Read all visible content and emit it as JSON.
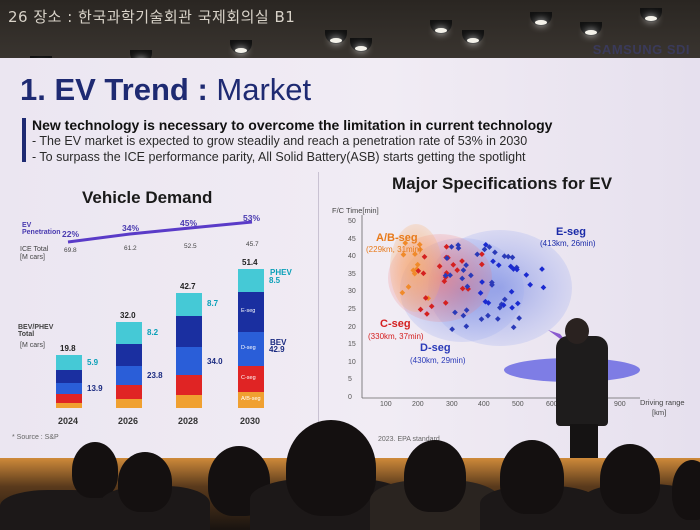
{
  "ceiling": {
    "room_text": "26    장소 : 한국과학기술회관 국제회의실 B1"
  },
  "slide": {
    "brand": "SAMSUNG SDI",
    "title_bold": "1. EV Trend : ",
    "title_thin": "Market",
    "main_bullet": "New technology is necessary to overcome the limitation in current technology",
    "sub_bullets": [
      "- The EV market is expected to grow steadily and reach a penetration rate of 53% in 2030",
      "- To surpass the ICE performance parity, All Solid Battery(ASB) starts getting the spotlight"
    ],
    "left_title": "Vehicle Demand",
    "right_title": "Major Specifications for EV",
    "source": "* Source : S&P",
    "footnote": "2023.              EPA standard"
  },
  "vehicle_demand": {
    "ev_penetration_label": "EV Penetration",
    "ice_total_label": "ICE Total",
    "ice_unit": "[M cars]",
    "bev_label": "BEV/PHEV Total",
    "bev_unit": "[M cars]",
    "years": [
      "2024",
      "2026",
      "2028",
      "2030"
    ],
    "penetration": [
      "22%",
      "34%",
      "45%",
      "53%"
    ],
    "ice_totals": [
      "69.8",
      "61.2",
      "52.5",
      "45.7"
    ],
    "totals": [
      "19.8",
      "32.0",
      "42.7",
      "51.4"
    ],
    "phev": [
      "5.9",
      "8.2",
      "8.7",
      "8.5"
    ],
    "bev": [
      "13.9",
      "23.8",
      "34.0",
      "42.9"
    ],
    "phev_label": "PHEV",
    "bev_side_label": "BEV",
    "seg_labels": [
      "E-seg",
      "D-seg",
      "C-seg",
      "A/B-seg"
    ],
    "colors": {
      "phev": "#45c9d6",
      "e_seg": "#1a2fa0",
      "d_seg": "#2a5ed8",
      "c_seg": "#e02424",
      "ab_seg": "#f0a030"
    }
  },
  "specs_chart": {
    "y_axis_label": "F/C Time[min]",
    "x_axis_label": "Driving range",
    "x_unit": "[km]",
    "y_ticks": [
      "50",
      "45",
      "40",
      "35",
      "30",
      "25",
      "20",
      "15",
      "10",
      "5",
      "0"
    ],
    "x_ticks": [
      "100",
      "200",
      "300",
      "400",
      "500",
      "600",
      "700",
      "900"
    ],
    "segments": [
      {
        "name": "A/B-seg",
        "spec": "(229km, 31min)",
        "color": "#e87a1a"
      },
      {
        "name": "C-seg",
        "spec": "(330km, 37min)",
        "color": "#d42020"
      },
      {
        "name": "D-seg",
        "spec": "(430km, 29min)",
        "color": "#2a3ab8"
      },
      {
        "name": "E-seg",
        "spec": "(413km, 26min)",
        "color": "#1a2aa8"
      }
    ]
  }
}
